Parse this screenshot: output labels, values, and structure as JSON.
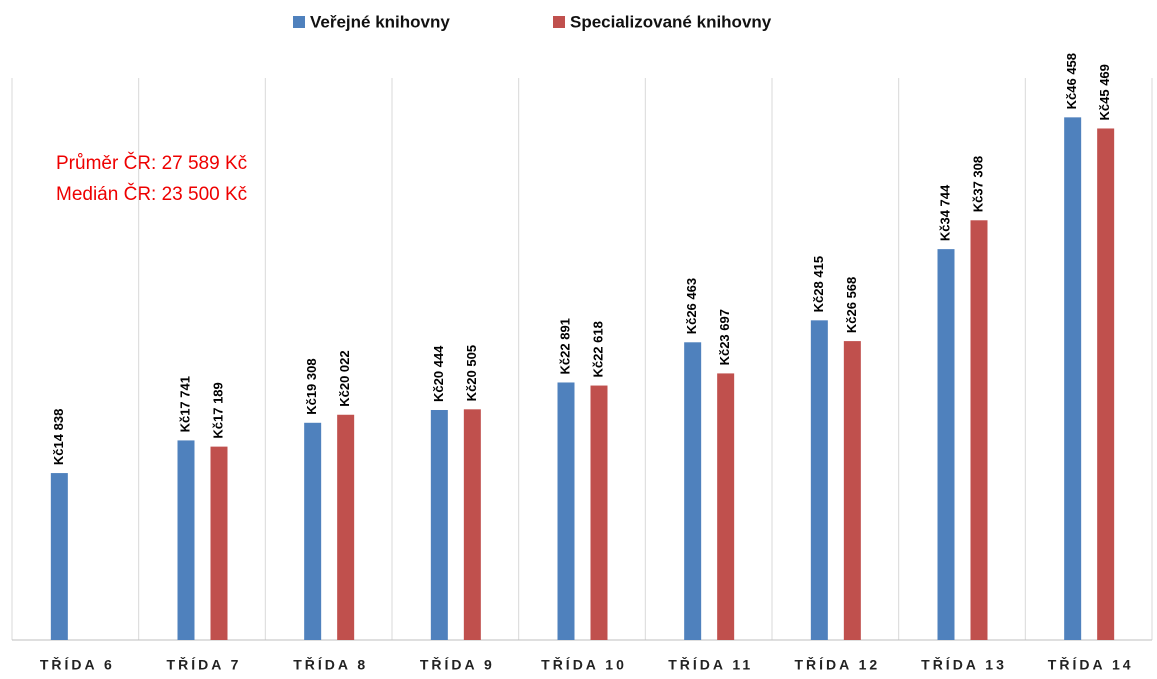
{
  "chart_data": {
    "type": "bar",
    "categories": [
      "TŘÍDA 6",
      "TŘÍDA 7",
      "TŘÍDA 8",
      "TŘÍDA 9",
      "TŘÍDA 10",
      "TŘÍDA 11",
      "TŘÍDA 12",
      "TŘÍDA 13",
      "TŘÍDA 14"
    ],
    "series": [
      {
        "name": "Veřejné knihovny",
        "color": "#4f81bd",
        "values": [
          14838,
          17741,
          19308,
          20444,
          22891,
          26463,
          28415,
          34744,
          46458
        ],
        "value_labels": [
          "Kč14 838",
          "Kč17 741",
          "Kč19 308",
          "Kč20 444",
          "Kč22 891",
          "Kč26 463",
          "Kč28 415",
          "Kč34 744",
          "Kč46 458"
        ]
      },
      {
        "name": "Specializované knihovny",
        "color": "#c0504d",
        "values": [
          null,
          17189,
          20022,
          20505,
          22618,
          23697,
          26568,
          37308,
          45469
        ],
        "value_labels": [
          null,
          "Kč17 189",
          "Kč20 022",
          "Kč20 505",
          "Kč22 618",
          "Kč23 697",
          "Kč26 568",
          "Kč37 308",
          "Kč45 469"
        ]
      }
    ],
    "ylim": [
      0,
      52000
    ],
    "annotations": [
      "Průměr ČR: 27 589 Kč",
      "Medián ČR: 23 500 Kč"
    ],
    "legend": "top"
  }
}
